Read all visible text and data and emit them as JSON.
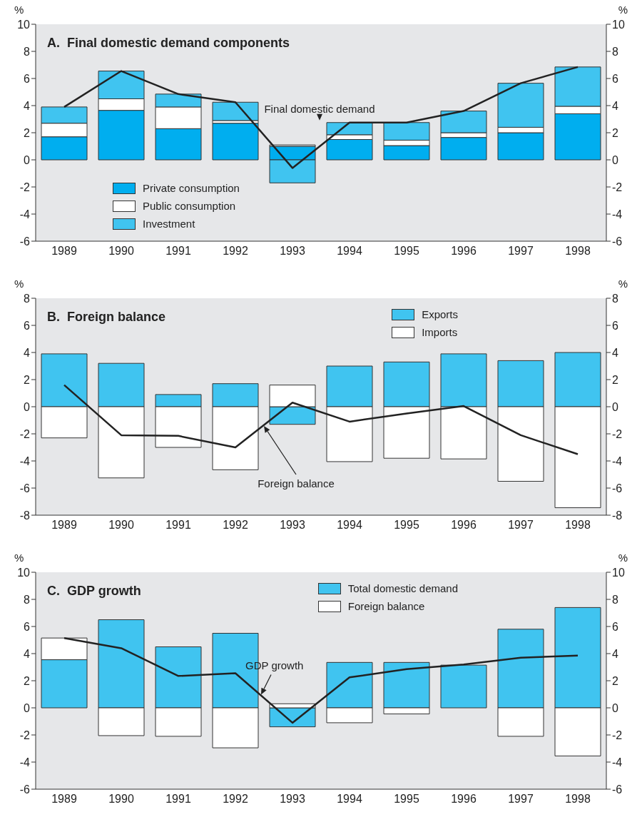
{
  "chart_data": [
    {
      "type": "bar",
      "title": "A.  Final domestic demand components",
      "ylabel": "%",
      "y2label": "%",
      "categories": [
        "1989",
        "1990",
        "1991",
        "1992",
        "1993",
        "1994",
        "1995",
        "1996",
        "1997",
        "1998"
      ],
      "stacked": true,
      "legend": "bottom left",
      "marker": "none",
      "grid": false,
      "ylim": [
        -6,
        10
      ],
      "yticks": [
        -6,
        -4,
        -2,
        0,
        2,
        4,
        6,
        8,
        10
      ],
      "y2lim": [
        -6,
        10
      ],
      "y2ticks": [
        -6,
        -4,
        -2,
        0,
        2,
        4,
        6,
        8,
        10
      ],
      "series": [
        {
          "name": "Private consumption",
          "color": "#00aeef",
          "values": [
            1.7,
            3.65,
            2.3,
            2.7,
            1.0,
            1.5,
            1.05,
            1.65,
            2.0,
            3.4
          ]
        },
        {
          "name": "Public consumption",
          "color": "#ffffff",
          "values": [
            1.0,
            0.85,
            1.6,
            0.2,
            0.1,
            0.35,
            0.4,
            0.35,
            0.4,
            0.55
          ]
        },
        {
          "name": "Investment",
          "color": "#40c4f0",
          "values": [
            1.2,
            2.05,
            0.95,
            1.35,
            -1.7,
            0.9,
            1.3,
            1.6,
            3.25,
            2.9
          ]
        },
        {
          "name": "Final domestic demand",
          "type": "line",
          "color": "#222222",
          "values": [
            3.9,
            6.55,
            4.85,
            4.25,
            -0.6,
            2.75,
            2.75,
            3.6,
            5.65,
            6.85
          ]
        }
      ]
    },
    {
      "type": "bar",
      "title": "B.  Foreign balance",
      "ylabel": "%",
      "y2label": "%",
      "categories": [
        "1989",
        "1990",
        "1991",
        "1992",
        "1993",
        "1994",
        "1995",
        "1996",
        "1997",
        "1998"
      ],
      "stacked": true,
      "legend": "top right",
      "marker": "none",
      "grid": false,
      "ylim": [
        -8,
        8
      ],
      "yticks": [
        -8,
        -6,
        -4,
        -2,
        0,
        2,
        4,
        6,
        8
      ],
      "y2lim": [
        -8,
        8
      ],
      "y2ticks": [
        -8,
        -6,
        -4,
        -2,
        0,
        2,
        4,
        6,
        8
      ],
      "series": [
        {
          "name": "Exports",
          "color": "#40c4f0",
          "values": [
            3.9,
            3.2,
            0.9,
            1.7,
            -1.3,
            3.0,
            3.3,
            3.9,
            3.4,
            4.0
          ]
        },
        {
          "name": "Imports",
          "color": "#ffffff",
          "values": [
            -2.3,
            -5.25,
            -3.0,
            -4.65,
            1.6,
            -4.05,
            -3.8,
            -3.85,
            -5.5,
            -7.45
          ]
        },
        {
          "name": "Foreign balance",
          "type": "line",
          "color": "#222222",
          "values": [
            1.6,
            -2.1,
            -2.15,
            -3.0,
            0.3,
            -1.1,
            -0.5,
            0.05,
            -2.1,
            -3.5
          ]
        }
      ]
    },
    {
      "type": "bar",
      "title": "C.  GDP growth",
      "ylabel": "%",
      "y2label": "%",
      "categories": [
        "1989",
        "1990",
        "1991",
        "1992",
        "1993",
        "1994",
        "1995",
        "1996",
        "1997",
        "1998"
      ],
      "stacked": true,
      "legend": "top right",
      "marker": "none",
      "grid": false,
      "ylim": [
        -6,
        10
      ],
      "yticks": [
        -6,
        -4,
        -2,
        0,
        2,
        4,
        6,
        8,
        10
      ],
      "y2lim": [
        -6,
        10
      ],
      "y2ticks": [
        -6,
        -4,
        -2,
        0,
        2,
        4,
        6,
        8,
        10
      ],
      "series": [
        {
          "name": "Total domestic demand",
          "color": "#40c4f0",
          "values": [
            3.55,
            6.5,
            4.5,
            5.5,
            -1.4,
            3.35,
            3.35,
            3.15,
            5.8,
            7.4
          ]
        },
        {
          "name": "Foreign balance",
          "color": "#ffffff",
          "values": [
            1.6,
            -2.05,
            -2.1,
            -2.95,
            0.3,
            -1.1,
            -0.45,
            0,
            -2.1,
            -3.55
          ]
        },
        {
          "name": "GDP growth",
          "type": "line",
          "color": "#222222",
          "values": [
            5.15,
            4.4,
            2.35,
            2.55,
            -1.1,
            2.25,
            2.85,
            3.2,
            3.7,
            3.85
          ]
        }
      ]
    }
  ]
}
